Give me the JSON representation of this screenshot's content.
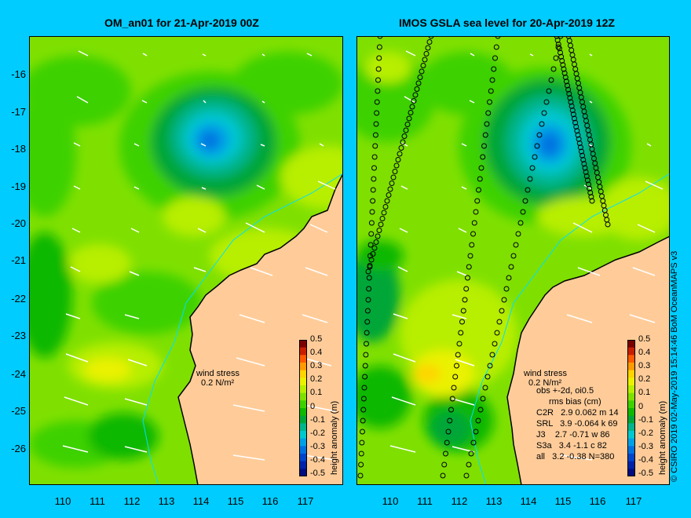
{
  "panels": {
    "left": {
      "title": "OM_an01 for 21-Apr-2019 00Z"
    },
    "right": {
      "title": "IMOS GSLA sea level  for 20-Apr-2019 12Z"
    }
  },
  "axes": {
    "lat_ticks": [
      "-16",
      "-17",
      "-18",
      "-19",
      "-20",
      "-21",
      "-22",
      "-23",
      "-24",
      "-25",
      "-26"
    ],
    "lon_ticks": [
      "110",
      "111",
      "112",
      "113",
      "114",
      "115",
      "116",
      "117"
    ]
  },
  "colorbar": {
    "title": "height anomaly (m)",
    "labels": [
      "0.5",
      "0.4",
      "0.3",
      "0.2",
      "0.1",
      "0",
      "-0.1",
      "-0.2",
      "-0.3",
      "-0.4",
      "-0.5"
    ],
    "colors": [
      "#7a0000",
      "#c81e00",
      "#ff5a00",
      "#ff9a00",
      "#ffd400",
      "#eaf200",
      "#b8ee00",
      "#7fe000",
      "#3ed100",
      "#10b800",
      "#00a638",
      "#00b48c",
      "#00c8d0",
      "#00a0e6",
      "#0070e0",
      "#0044cc",
      "#0022a8",
      "#000c80"
    ]
  },
  "wind": {
    "line1": "wind stress",
    "line2": "0.2 N/m²"
  },
  "stats": {
    "header1": "obs +-2d, oi0.5",
    "header2": "rms bias (cm)",
    "rows": [
      "C2R   2.9 0.062 m 14",
      "SRL   3.9 -0.064 k 69",
      "J3    2.7 -0.71 w 86",
      "S3a   3.4 -1.1 c 82",
      "all   3.2 -0.38 N=380"
    ]
  },
  "credit": "© CSIRO 2019  02-May-2019 15:14:46 BoM OceanMAPS v3"
}
